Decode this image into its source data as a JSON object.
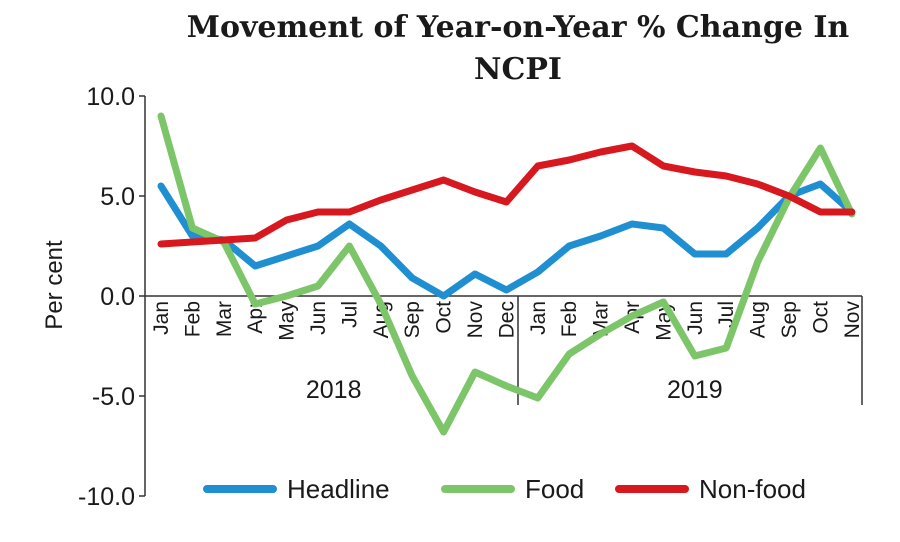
{
  "chart_data": {
    "type": "line",
    "title": "Movement of Year-on-Year % Change In",
    "title_line2": "NCPI",
    "ylabel": "Per cent",
    "ylim": [
      -10,
      10
    ],
    "yticks": [
      {
        "value": 10,
        "label": "10.0"
      },
      {
        "value": 5,
        "label": "5.0"
      },
      {
        "value": 0,
        "label": "0.0"
      },
      {
        "value": -5,
        "label": "-5.0"
      },
      {
        "value": -10,
        "label": "-10.0"
      }
    ],
    "categories": [
      "Jan",
      "Feb",
      "Mar",
      "Apr",
      "May",
      "Jun",
      "Jul",
      "Aug",
      "Sep",
      "Oct",
      "Nov",
      "Dec",
      "Jan",
      "Feb",
      "Mar",
      "Apr",
      "May",
      "Jun",
      "Jul",
      "Aug",
      "Sep",
      "Oct",
      "Nov"
    ],
    "years": [
      {
        "label": "2018",
        "start": 0,
        "end": 11
      },
      {
        "label": "2019",
        "start": 12,
        "end": 22
      }
    ],
    "series": [
      {
        "name": "Headline",
        "color": "#1f8fd1",
        "values": [
          5.5,
          3.0,
          2.8,
          1.5,
          2.0,
          2.5,
          3.6,
          2.5,
          0.9,
          0.0,
          1.1,
          0.3,
          1.2,
          2.5,
          3.0,
          3.6,
          3.4,
          2.1,
          2.1,
          3.4,
          5.0,
          5.6,
          4.2
        ]
      },
      {
        "name": "Food",
        "color": "#7cc569",
        "values": [
          9.0,
          3.4,
          2.7,
          -0.4,
          0.0,
          0.5,
          2.5,
          -0.4,
          -4.0,
          -6.8,
          -3.8,
          -4.5,
          -5.1,
          -2.9,
          -1.9,
          -1.0,
          -0.3,
          -3.0,
          -2.6,
          1.7,
          4.9,
          7.4,
          4.1
        ]
      },
      {
        "name": "Non-food",
        "color": "#d7191f",
        "values": [
          2.6,
          2.7,
          2.8,
          2.9,
          3.8,
          4.2,
          4.2,
          4.8,
          5.3,
          5.8,
          5.2,
          4.7,
          6.5,
          6.8,
          7.2,
          7.5,
          6.5,
          6.2,
          6.0,
          5.6,
          5.0,
          4.2,
          4.2
        ]
      }
    ],
    "legend_position": "bottom",
    "grid": false
  }
}
